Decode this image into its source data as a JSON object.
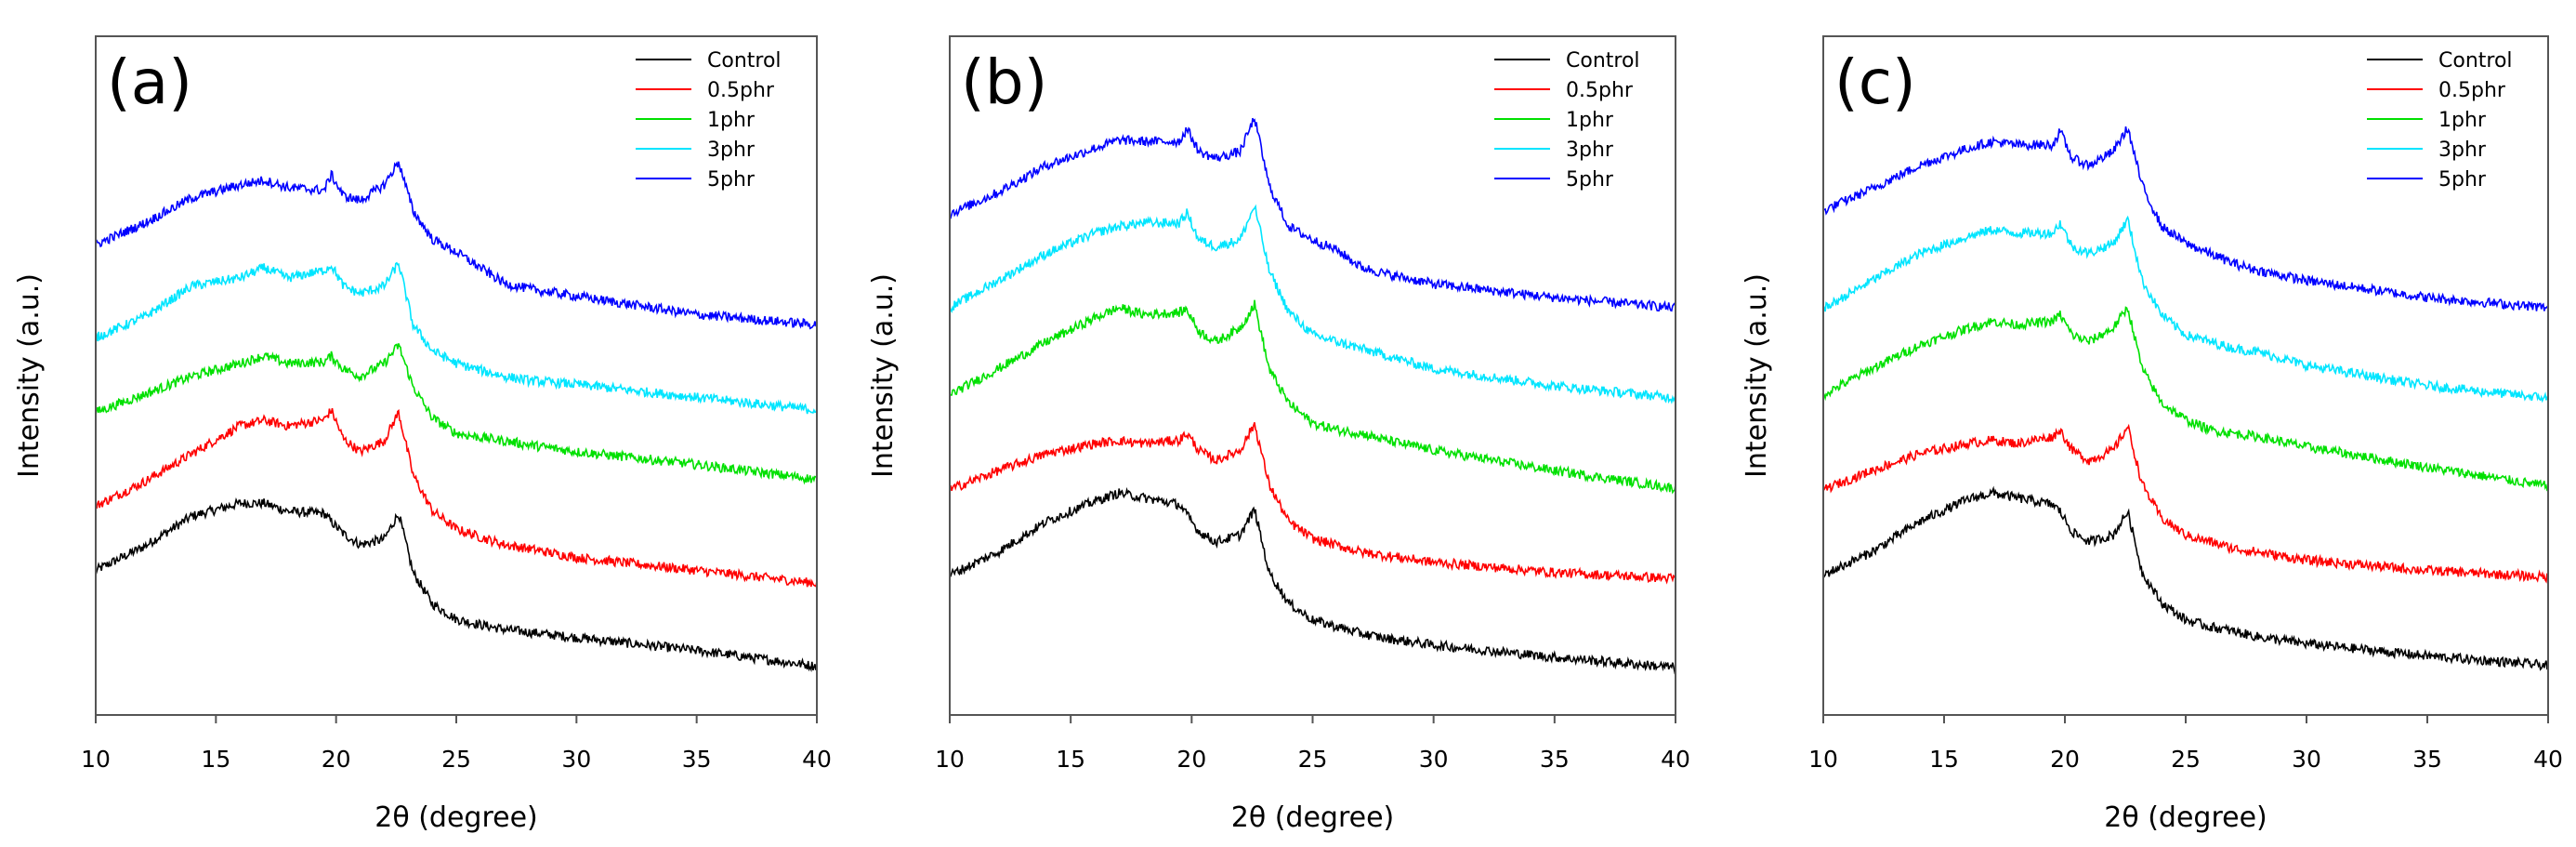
{
  "chart_data": [
    {
      "type": "line",
      "panel_label": "(a)",
      "xlabel": "2θ  (degree)",
      "ylabel": "Intensity (a.u.)",
      "xlim": [
        10,
        40
      ],
      "ylim": [
        0,
        100
      ],
      "xticks": [
        "10",
        "15",
        "20",
        "25",
        "30",
        "35",
        "40"
      ],
      "yticks": [],
      "grid": false,
      "legend_position": "top-right",
      "x": [
        10,
        12,
        14,
        16,
        17,
        18,
        19.5,
        19.8,
        20.3,
        21,
        22,
        22.6,
        23.2,
        24,
        25,
        26,
        27,
        28,
        30,
        35,
        40
      ],
      "series": [
        {
          "name": "Control",
          "color": "#000000",
          "values": [
            21.3,
            24.8,
            29.3,
            31.2,
            31.2,
            30,
            29.7,
            28.5,
            26.7,
            25.1,
            25.9,
            29.7,
            21,
            16.4,
            14.1,
            13.3,
            12.6,
            12.2,
            11.4,
            9.5,
            7.2
          ]
        },
        {
          "name": "0.5phr",
          "color": "#ff0000",
          "values": [
            30.8,
            34.3,
            38.5,
            42.6,
            43.4,
            42.6,
            43.5,
            44.9,
            40.7,
            38.8,
            40.4,
            44.6,
            35.4,
            30.1,
            27.4,
            26.2,
            25.1,
            24.5,
            23.2,
            21.3,
            19.4
          ]
        },
        {
          "name": "1phr",
          "color": "#00e000",
          "values": [
            44.6,
            47.2,
            49.9,
            51.8,
            52.9,
            51.8,
            52,
            52.9,
            51,
            49.9,
            51.8,
            54.5,
            48.4,
            43.8,
            41.5,
            40.9,
            40.4,
            39.8,
            38.8,
            36.9,
            34.7
          ]
        },
        {
          "name": "3phr",
          "color": "#00e5ff",
          "values": [
            55.6,
            58.6,
            63.2,
            64.4,
            65.9,
            64.4,
            65.5,
            66.3,
            63.2,
            62.1,
            63.2,
            66.6,
            57.5,
            53.7,
            51.8,
            50.8,
            49.9,
            49.3,
            48.7,
            46.8,
            44.9
          ]
        },
        {
          "name": "5phr",
          "color": "#0000ff",
          "values": [
            69.3,
            72.4,
            76.2,
            78.1,
            78.8,
            77.7,
            77.3,
            79.6,
            76.5,
            75.8,
            78.1,
            81.5,
            74.3,
            70.1,
            68.2,
            65.9,
            63.6,
            62.8,
            61.7,
            59,
            57.5
          ]
        }
      ]
    },
    {
      "type": "line",
      "panel_label": "(b)",
      "xlabel": "2θ  (degree)",
      "ylabel": "Intensity (a.u.)",
      "xlim": [
        10,
        40
      ],
      "ylim": [
        0,
        100
      ],
      "xticks": [
        "10",
        "15",
        "20",
        "25",
        "30",
        "35",
        "40"
      ],
      "yticks": [],
      "grid": false,
      "legend_position": "top-right",
      "x": [
        10,
        12,
        14,
        16,
        17,
        18,
        19.5,
        19.8,
        20.3,
        21,
        22,
        22.6,
        23.2,
        24,
        25,
        26,
        27,
        28,
        30,
        35,
        40
      ],
      "series": [
        {
          "name": "Control",
          "color": "#000000",
          "values": [
            20.6,
            24,
            28.5,
            31.5,
            32.7,
            32,
            31,
            29.5,
            27,
            25.5,
            26.5,
            30.3,
            21,
            16.5,
            14,
            13,
            12,
            11.3,
            10.3,
            8.5,
            7
          ]
        },
        {
          "name": "0.5phr",
          "color": "#ff0000",
          "values": [
            33.2,
            36,
            38.5,
            40,
            40.4,
            40,
            40.5,
            41.5,
            39,
            37.5,
            39,
            42.9,
            34,
            28.5,
            26,
            25,
            24,
            23.5,
            22.5,
            21,
            20.1
          ]
        },
        {
          "name": "1phr",
          "color": "#00e000",
          "values": [
            47.2,
            51,
            55,
            58.5,
            60,
            59,
            59.3,
            59.8,
            56.5,
            55,
            57,
            60.5,
            51,
            46,
            43,
            42,
            41.5,
            40.5,
            39,
            36,
            33.4
          ]
        },
        {
          "name": "3phr",
          "color": "#00e5ff",
          "values": [
            60,
            64,
            68,
            71,
            72,
            72.5,
            72.5,
            74,
            70,
            69,
            70,
            75,
            65.5,
            59.5,
            56,
            55,
            54,
            53,
            51,
            48.5,
            46.7
          ]
        },
        {
          "name": "5phr",
          "color": "#0000ff",
          "values": [
            73.8,
            77,
            81,
            83.5,
            84.7,
            84.5,
            84.5,
            86.4,
            83,
            82,
            83,
            88,
            78,
            72,
            70,
            68.5,
            66,
            65,
            63.5,
            61.5,
            60
          ]
        }
      ]
    },
    {
      "type": "line",
      "panel_label": "(c)",
      "xlabel": "2θ  (degree)",
      "ylabel": "Intensity (a.u.)",
      "xlim": [
        10,
        40
      ],
      "ylim": [
        0,
        100
      ],
      "xticks": [
        "10",
        "15",
        "20",
        "25",
        "30",
        "35",
        "40"
      ],
      "yticks": [],
      "grid": false,
      "legend_position": "top-right",
      "x": [
        10,
        12,
        14,
        16,
        17,
        18,
        19.5,
        19.8,
        20.3,
        21,
        22,
        22.6,
        23.2,
        24,
        25,
        26,
        27,
        28,
        30,
        35,
        40
      ],
      "series": [
        {
          "name": "Control",
          "color": "#000000",
          "values": [
            20.6,
            24,
            28.5,
            31.8,
            32.7,
            32,
            31,
            30,
            27,
            25.5,
            26.5,
            30,
            21,
            16.5,
            14,
            13,
            12.3,
            11.5,
            10.5,
            8.7,
            7.3
          ]
        },
        {
          "name": "0.5phr",
          "color": "#ff0000",
          "values": [
            33.2,
            36,
            38.5,
            40,
            40.5,
            40,
            41,
            42,
            39,
            37.5,
            39,
            42.5,
            34,
            29,
            26.5,
            25.5,
            24.5,
            24,
            22.8,
            21.3,
            20.3
          ]
        },
        {
          "name": "1phr",
          "color": "#00e000",
          "values": [
            47.2,
            51,
            54.5,
            57,
            58,
            57.5,
            58,
            59,
            56,
            55,
            57,
            60,
            51,
            46,
            43.5,
            42,
            41.5,
            41,
            39.5,
            36.5,
            33.7
          ]
        },
        {
          "name": "3phr",
          "color": "#00e5ff",
          "values": [
            59.8,
            64,
            68,
            70.5,
            71.5,
            71,
            71,
            72.5,
            69,
            68,
            69.5,
            73,
            64,
            59,
            56,
            55,
            54,
            53.5,
            51.5,
            48.5,
            46.7
          ]
        },
        {
          "name": "5phr",
          "color": "#0000ff",
          "values": [
            74.3,
            77.5,
            81,
            83.5,
            84.5,
            84,
            84,
            86,
            82,
            81,
            83,
            86.5,
            78,
            72,
            69.5,
            68,
            66.5,
            65.5,
            64,
            61.5,
            60
          ]
        }
      ]
    }
  ]
}
